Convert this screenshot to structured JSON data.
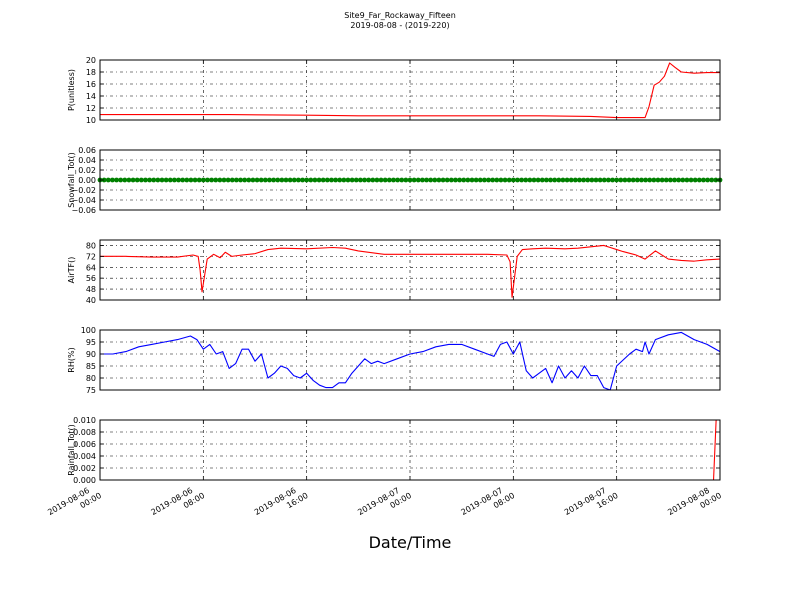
{
  "figure": {
    "title": "Site9_Far_Rockaway_Fifteen",
    "subtitle": "2019-08-08 - (2019-220)",
    "xlabel": "Date/Time"
  },
  "chart_data": [
    {
      "type": "line",
      "ylabel": "P(unitless)",
      "color": "#ff0000",
      "ylim": [
        10,
        20
      ],
      "yticks": [
        10,
        12,
        14,
        16,
        18,
        20
      ],
      "ytick_labels": [
        "10",
        "12",
        "14",
        "16",
        "18",
        "20"
      ],
      "xlim": [
        0,
        48
      ],
      "x_tick_hours": [
        0,
        8,
        16,
        24,
        32,
        40,
        48
      ],
      "x_tick_labels": [
        [
          "2019-08-06",
          "00:00"
        ],
        [
          "2019-08-06",
          "08:00"
        ],
        [
          "2019-08-06",
          "16:00"
        ],
        [
          "2019-08-07",
          "00:00"
        ],
        [
          "2019-08-07",
          "08:00"
        ],
        [
          "2019-08-07",
          "16:00"
        ],
        [
          "2019-08-08",
          "00:00"
        ]
      ],
      "grid": true,
      "x": [
        0,
        6,
        10,
        16,
        20,
        30,
        34,
        38,
        40,
        42,
        42.2,
        42.5,
        42.9,
        43.3,
        43.7,
        44.1,
        44.5,
        45,
        46,
        47,
        48
      ],
      "y": [
        10.9,
        10.9,
        10.9,
        10.8,
        10.7,
        10.7,
        10.7,
        10.6,
        10.4,
        10.4,
        10.4,
        12.2,
        15.8,
        16.3,
        17.3,
        19.5,
        18.8,
        18.0,
        17.8,
        17.9,
        17.9
      ]
    },
    {
      "type": "scatter",
      "ylabel": "Snowfall_Tot()",
      "color": "#008000",
      "ylim": [
        -0.06,
        0.06
      ],
      "yticks": [
        -0.06,
        -0.04,
        -0.02,
        0,
        0.02,
        0.04,
        0.06
      ],
      "ytick_labels": [
        "−0.06",
        "−0.04",
        "−0.02",
        "0.00",
        "0.02",
        "0.04",
        "0.06"
      ],
      "xlim": [
        0,
        48
      ],
      "x_tick_hours": [
        0,
        8,
        16,
        24,
        32,
        40,
        48
      ],
      "x_tick_labels": [
        [
          "2019-08-06",
          "00:00"
        ],
        [
          "2019-08-06",
          "08:00"
        ],
        [
          "2019-08-06",
          "16:00"
        ],
        [
          "2019-08-07",
          "00:00"
        ],
        [
          "2019-08-07",
          "08:00"
        ],
        [
          "2019-08-07",
          "16:00"
        ],
        [
          "2019-08-08",
          "00:00"
        ]
      ],
      "grid": true,
      "x_range": [
        0,
        48
      ],
      "value": 0.0
    },
    {
      "type": "line",
      "ylabel": "AirTF()",
      "color": "#ff0000",
      "ylim": [
        40,
        84
      ],
      "yticks": [
        40,
        48,
        56,
        64,
        72,
        80
      ],
      "ytick_labels": [
        "40",
        "48",
        "56",
        "64",
        "72",
        "80"
      ],
      "xlim": [
        0,
        48
      ],
      "x_tick_hours": [
        0,
        8,
        16,
        24,
        32,
        40,
        48
      ],
      "x_tick_labels": [
        [
          "2019-08-06",
          "00:00"
        ],
        [
          "2019-08-06",
          "08:00"
        ],
        [
          "2019-08-06",
          "16:00"
        ],
        [
          "2019-08-07",
          "00:00"
        ],
        [
          "2019-08-07",
          "08:00"
        ],
        [
          "2019-08-07",
          "16:00"
        ],
        [
          "2019-08-08",
          "00:00"
        ]
      ],
      "grid": true,
      "x": [
        0,
        2,
        4,
        6,
        7.2,
        7.6,
        7.75,
        7.9,
        8.3,
        8.8,
        9.3,
        9.7,
        10.2,
        11,
        12,
        13,
        14,
        16,
        18,
        19,
        20,
        22,
        24,
        26,
        28,
        30,
        31.5,
        31.75,
        31.9,
        32.3,
        32.7,
        33.5,
        34.5,
        36,
        37,
        38,
        39,
        39.5,
        40,
        40.5,
        41.5,
        42.2,
        43,
        44,
        45,
        46,
        47,
        48
      ],
      "y": [
        72,
        72,
        71.5,
        71.5,
        73,
        72,
        62,
        46,
        70,
        73.5,
        71,
        75,
        72,
        73,
        74,
        77,
        78,
        77.5,
        78.5,
        78,
        76,
        73.5,
        73.5,
        73.5,
        73.5,
        73.5,
        73,
        68,
        42,
        72,
        77,
        77.5,
        78,
        77.5,
        78,
        79,
        80,
        78.5,
        77,
        75.5,
        73,
        70,
        76,
        70,
        69,
        68.5,
        69.5,
        70
      ]
    },
    {
      "type": "line",
      "ylabel": "RH(%)",
      "color": "#0000ff",
      "ylim": [
        75,
        100
      ],
      "yticks": [
        75,
        80,
        85,
        90,
        95,
        100
      ],
      "ytick_labels": [
        "75",
        "80",
        "85",
        "90",
        "95",
        "100"
      ],
      "xlim": [
        0,
        48
      ],
      "x_tick_hours": [
        0,
        8,
        16,
        24,
        32,
        40,
        48
      ],
      "x_tick_labels": [
        [
          "2019-08-06",
          "00:00"
        ],
        [
          "2019-08-06",
          "08:00"
        ],
        [
          "2019-08-06",
          "16:00"
        ],
        [
          "2019-08-07",
          "00:00"
        ],
        [
          "2019-08-07",
          "08:00"
        ],
        [
          "2019-08-07",
          "16:00"
        ],
        [
          "2019-08-08",
          "00:00"
        ]
      ],
      "grid": true,
      "x": [
        0,
        1,
        2,
        3,
        4,
        5,
        6,
        7,
        7.5,
        8,
        8.5,
        9,
        9.5,
        10,
        10.5,
        11,
        11.5,
        12,
        12.5,
        13,
        13.5,
        14,
        14.5,
        15,
        15.5,
        16,
        16.5,
        17,
        17.5,
        18,
        18.5,
        19,
        19.5,
        20,
        20.5,
        21,
        21.5,
        22,
        23,
        24,
        25,
        26,
        27,
        28,
        29,
        30,
        30.5,
        31,
        31.5,
        32,
        32.5,
        33,
        33.5,
        34,
        34.5,
        35,
        35.5,
        36,
        36.5,
        37,
        37.5,
        38,
        38.5,
        39,
        39.5,
        40,
        41,
        41.5,
        42,
        42.2,
        42.5,
        43,
        44,
        45,
        46,
        47,
        48
      ],
      "y": [
        90,
        90,
        91,
        93,
        94,
        95,
        96,
        97.5,
        96,
        92,
        94,
        90,
        91,
        84,
        86,
        92,
        92,
        87,
        90,
        80,
        82,
        85,
        84,
        81,
        80,
        82,
        79,
        77,
        76,
        76,
        78,
        78,
        82,
        85,
        88,
        86,
        87,
        86,
        88,
        90,
        91,
        93,
        94,
        94,
        92,
        90,
        89,
        94,
        95,
        90,
        95,
        83,
        80,
        82,
        84,
        78,
        85,
        80,
        83,
        80,
        85,
        81,
        81,
        76,
        75,
        85,
        90,
        92,
        91,
        95,
        90,
        96,
        98,
        99,
        96,
        94,
        91
      ]
    },
    {
      "type": "line",
      "ylabel": "Rainfall_Tot()",
      "color": "#ff0000",
      "ylim": [
        0,
        0.01
      ],
      "yticks": [
        0,
        0.002,
        0.004,
        0.006,
        0.008,
        0.01
      ],
      "ytick_labels": [
        "0.000",
        "0.002",
        "0.004",
        "0.006",
        "0.008",
        "0.010"
      ],
      "xlim": [
        0,
        48
      ],
      "x_tick_hours": [
        0,
        8,
        16,
        24,
        32,
        40,
        48
      ],
      "x_tick_labels": [
        [
          "2019-08-06",
          "00:00"
        ],
        [
          "2019-08-06",
          "08:00"
        ],
        [
          "2019-08-06",
          "16:00"
        ],
        [
          "2019-08-07",
          "00:00"
        ],
        [
          "2019-08-07",
          "08:00"
        ],
        [
          "2019-08-07",
          "16:00"
        ],
        [
          "2019-08-08",
          "00:00"
        ]
      ],
      "grid": true,
      "x": [
        0,
        47.5,
        47.7,
        47.8,
        48
      ],
      "y": [
        0,
        0,
        0.01,
        0.01,
        0.01
      ]
    }
  ]
}
